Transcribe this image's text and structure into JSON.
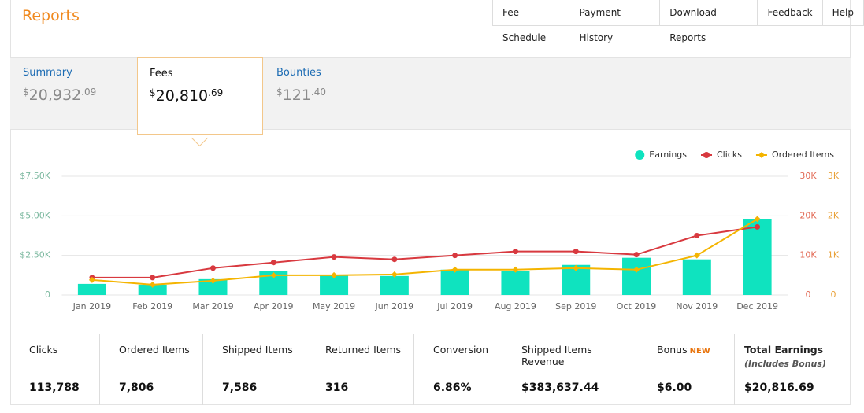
{
  "header": {
    "title": "Reports",
    "nav": [
      "Fee Schedule",
      "Payment History",
      "Download Reports",
      "Feedback",
      "Help"
    ]
  },
  "tabs": [
    {
      "label": "Summary",
      "currency": "$",
      "whole": "20,932",
      "cents": ".09"
    },
    {
      "label": "Fees",
      "currency": "$",
      "whole": "20,810",
      "cents": ".69"
    },
    {
      "label": "Bounties",
      "currency": "$",
      "whole": "121",
      "cents": ".40"
    }
  ],
  "chart_data": {
    "type": "combo",
    "categories": [
      "Jan 2019",
      "Feb 2019",
      "Mar 2019",
      "Apr 2019",
      "May 2019",
      "Jun 2019",
      "Jul 2019",
      "Aug 2019",
      "Sep 2019",
      "Oct 2019",
      "Nov 2019",
      "Dec 2019"
    ],
    "series": [
      {
        "name": "Earnings",
        "type": "bar",
        "color": "#0fe3bf",
        "axis": "y",
        "values": [
          700,
          650,
          1000,
          1500,
          1250,
          1200,
          1600,
          1500,
          1900,
          2350,
          2250,
          4800
        ]
      },
      {
        "name": "Clicks",
        "type": "line",
        "color": "#d8393f",
        "axis": "y2",
        "values": [
          4400,
          4400,
          6800,
          8200,
          9600,
          9000,
          10000,
          11000,
          11000,
          10200,
          15000,
          17200
        ]
      },
      {
        "name": "Ordered Items",
        "type": "line",
        "color": "#f4b400",
        "axis": "y3",
        "values": [
          380,
          260,
          360,
          500,
          500,
          520,
          640,
          640,
          680,
          640,
          1000,
          1920
        ]
      }
    ],
    "ylim": [
      0,
      7500
    ],
    "yticks": [
      0,
      {
        "value": 2500,
        "label": "$2.50K"
      },
      {
        "value": 5000,
        "label": "$5.00K"
      },
      {
        "value": 7500,
        "label": "$7.50K"
      }
    ],
    "y2lim": [
      0,
      30000
    ],
    "y2ticks": [
      0,
      {
        "value": 10000,
        "label": "10K"
      },
      {
        "value": 20000,
        "label": "20K"
      },
      {
        "value": 30000,
        "label": "30K"
      }
    ],
    "y3lim": [
      0,
      3000
    ],
    "y3ticks": [
      0,
      {
        "value": 1000,
        "label": "1K"
      },
      {
        "value": 2000,
        "label": "2K"
      },
      {
        "value": 3000,
        "label": "3K"
      }
    ],
    "grid": true,
    "legend": "top-right"
  },
  "stats": [
    {
      "label": "Clicks",
      "value": "113,788"
    },
    {
      "label": "Ordered Items",
      "value": "7,806"
    },
    {
      "label": "Shipped Items",
      "value": "7,586"
    },
    {
      "label": "Returned Items",
      "value": "316"
    },
    {
      "label": "Conversion",
      "value": "6.86%"
    },
    {
      "label": "Shipped Items Revenue",
      "value": "$383,637.44"
    },
    {
      "label": "Bonus",
      "badge": "NEW",
      "value": "$6.00"
    },
    {
      "label": "Total Earnings",
      "note": "(Includes Bonus)",
      "value": "$20,816.69"
    }
  ]
}
